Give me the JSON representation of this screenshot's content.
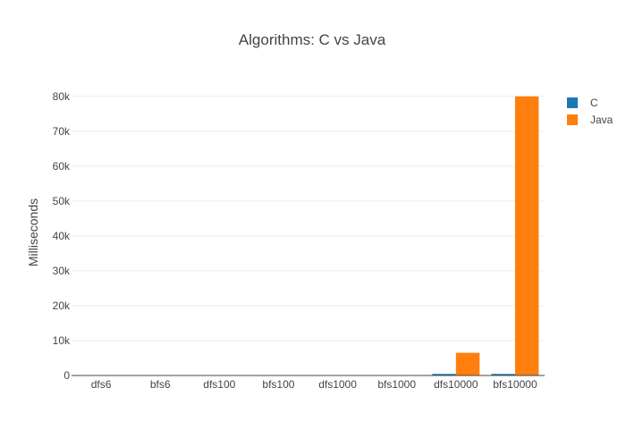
{
  "chart_data": {
    "type": "bar",
    "title": "Algorithms: C vs Java",
    "xlabel": "",
    "ylabel": "Milliseconds",
    "categories": [
      "dfs6",
      "bfs6",
      "dfs100",
      "bfs100",
      "dfs1000",
      "bfs1000",
      "dfs10000",
      "bfs10000"
    ],
    "series": [
      {
        "name": "C",
        "color": "#1f77b4",
        "values": [
          0,
          0,
          2,
          2,
          20,
          25,
          450,
          450
        ]
      },
      {
        "name": "Java",
        "color": "#ff7f0e",
        "values": [
          0,
          0,
          5,
          5,
          80,
          90,
          6500,
          80000
        ]
      }
    ],
    "ylim": [
      0,
      82000
    ],
    "yticks": [
      0,
      10000,
      20000,
      30000,
      40000,
      50000,
      60000,
      70000,
      80000
    ],
    "ytick_labels": [
      "0",
      "10k",
      "20k",
      "30k",
      "40k",
      "50k",
      "60k",
      "70k",
      "80k"
    ],
    "grid": true,
    "legend_position": "top-right"
  }
}
